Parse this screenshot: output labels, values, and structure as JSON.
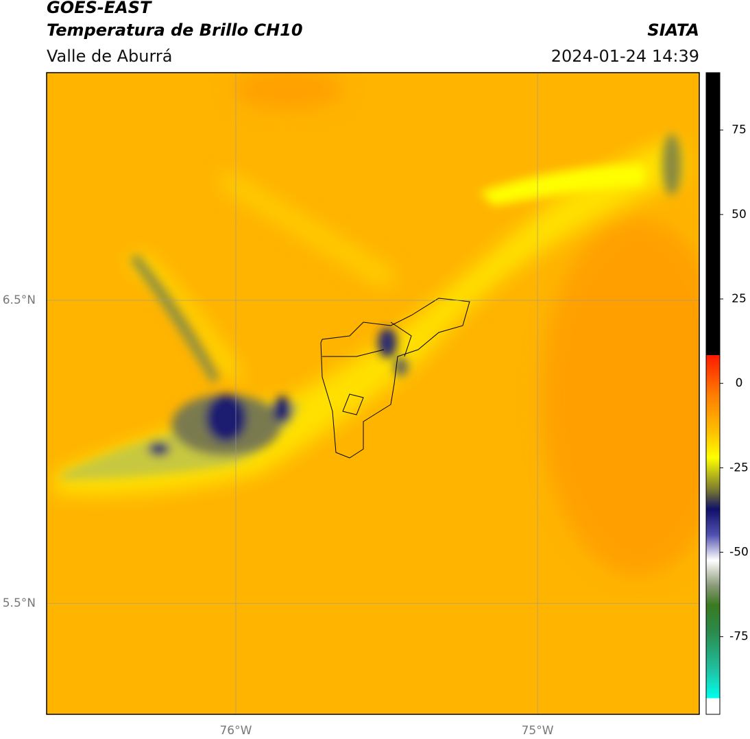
{
  "header": {
    "title": "GOES-EAST",
    "subtitle": "Temperatura de Brillo CH10",
    "region": "Valle de Aburrá",
    "source": "SIATA",
    "datetime": "2024-01-24 14:39"
  },
  "map": {
    "xlim": [
      -76.627,
      -74.464
    ],
    "ylim": [
      5.134,
      7.251
    ],
    "xticks": [
      {
        "value": -76,
        "label": "76°W"
      },
      {
        "value": -75,
        "label": "75°W"
      }
    ],
    "yticks": [
      {
        "value": 6.5,
        "label": "6.5°N"
      },
      {
        "value": 5.5,
        "label": "5.5°N"
      }
    ],
    "grid": true
  },
  "colorbar": {
    "lim": [
      -98,
      92
    ],
    "ticks": [
      75,
      50,
      25,
      0,
      -25,
      -50,
      -75
    ]
  }
}
